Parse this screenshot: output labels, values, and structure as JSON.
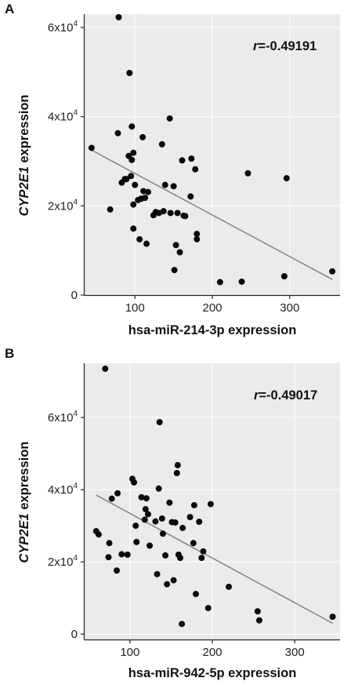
{
  "panels": [
    {
      "label": "A",
      "r_prefix": "r",
      "r_value": "=-0.49191",
      "y_label_italic": "CYP2E1",
      "y_label_rest": " expression",
      "x_label": "hsa-miR-214-3p expression",
      "x_ticks": [
        "100",
        "200",
        "300"
      ],
      "y_ticks": [
        {
          "base": "0",
          "exp": ""
        },
        {
          "base": "2x10",
          "exp": "4"
        },
        {
          "base": "4x10",
          "exp": "4"
        },
        {
          "base": "6x10",
          "exp": "4"
        }
      ]
    },
    {
      "label": "B",
      "r_prefix": "r",
      "r_value": "=-0.49017",
      "y_label_italic": "CYP2E1",
      "y_label_rest": " expression",
      "x_label": "hsa-miR-942-5p expression",
      "x_ticks": [
        "100",
        "200",
        "300"
      ],
      "y_ticks": [
        {
          "base": "0",
          "exp": ""
        },
        {
          "base": "2x10",
          "exp": "4"
        },
        {
          "base": "4x10",
          "exp": "4"
        },
        {
          "base": "6x10",
          "exp": "4"
        }
      ]
    }
  ],
  "chart_data": [
    {
      "type": "scatter",
      "title": "",
      "xlabel": "hsa-miR-214-3p expression",
      "ylabel": "CYP2E1 expression",
      "annotation": "r=-0.49191",
      "xlim": [
        35,
        365
      ],
      "ylim": [
        0,
        63000
      ],
      "x_ticks": [
        100,
        200,
        300
      ],
      "y_ticks": [
        0,
        20000,
        40000,
        60000
      ],
      "grid": true,
      "points": [
        [
          44,
          33000
        ],
        [
          68,
          19200
        ],
        [
          78,
          36300
        ],
        [
          79,
          62300
        ],
        [
          83,
          25200
        ],
        [
          87,
          26000
        ],
        [
          89,
          26000
        ],
        [
          92,
          31200
        ],
        [
          93,
          49800
        ],
        [
          95,
          26700
        ],
        [
          96,
          37800
        ],
        [
          96,
          30300
        ],
        [
          98,
          31900
        ],
        [
          98,
          20300
        ],
        [
          98,
          14900
        ],
        [
          100,
          24700
        ],
        [
          104,
          21300
        ],
        [
          106,
          12500
        ],
        [
          108,
          21600
        ],
        [
          110,
          35400
        ],
        [
          111,
          23300
        ],
        [
          113,
          21800
        ],
        [
          115,
          11500
        ],
        [
          117,
          23100
        ],
        [
          124,
          17900
        ],
        [
          127,
          18600
        ],
        [
          131,
          18400
        ],
        [
          135,
          33800
        ],
        [
          137,
          18800
        ],
        [
          139,
          24700
        ],
        [
          145,
          39600
        ],
        [
          146,
          18400
        ],
        [
          150,
          24400
        ],
        [
          151,
          5600
        ],
        [
          153,
          11200
        ],
        [
          155,
          18400
        ],
        [
          158,
          9600
        ],
        [
          161,
          30200
        ],
        [
          163,
          17800
        ],
        [
          165,
          17700
        ],
        [
          172,
          22100
        ],
        [
          173,
          30600
        ],
        [
          178,
          28200
        ],
        [
          180,
          13700
        ],
        [
          180,
          12500
        ],
        [
          210,
          2900
        ],
        [
          238,
          3000
        ],
        [
          246,
          27300
        ],
        [
          293,
          4200
        ],
        [
          296,
          26200
        ],
        [
          355,
          5300
        ]
      ],
      "fit_line": {
        "x": [
          44,
          355
        ],
        "y": [
          32500,
          3500
        ]
      }
    },
    {
      "type": "scatter",
      "title": "",
      "xlabel": "hsa-miR-942-5p expression",
      "ylabel": "CYP2E1 expression",
      "annotation": "r=-0.49017",
      "xlim": [
        45,
        355
      ],
      "ylim": [
        -1500,
        75000
      ],
      "x_ticks": [
        100,
        200,
        300
      ],
      "y_ticks": [
        0,
        20000,
        40000,
        60000
      ],
      "grid": true,
      "points": [
        [
          59,
          28500
        ],
        [
          62,
          27600
        ],
        [
          70,
          73500
        ],
        [
          74,
          21300
        ],
        [
          75,
          25200
        ],
        [
          78,
          37500
        ],
        [
          84,
          17600
        ],
        [
          85,
          39000
        ],
        [
          90,
          22100
        ],
        [
          97,
          22000
        ],
        [
          103,
          43000
        ],
        [
          105,
          42000
        ],
        [
          107,
          30000
        ],
        [
          108,
          25500
        ],
        [
          114,
          37900
        ],
        [
          118,
          31700
        ],
        [
          119,
          34600
        ],
        [
          120,
          37600
        ],
        [
          122,
          33200
        ],
        [
          124,
          24500
        ],
        [
          131,
          31200
        ],
        [
          133,
          16600
        ],
        [
          135,
          40300
        ],
        [
          136,
          58700
        ],
        [
          139,
          32000
        ],
        [
          140,
          27800
        ],
        [
          143,
          21800
        ],
        [
          145,
          13800
        ],
        [
          148,
          36400
        ],
        [
          151,
          31000
        ],
        [
          153,
          14900
        ],
        [
          155,
          30900
        ],
        [
          157,
          44600
        ],
        [
          158,
          46800
        ],
        [
          159,
          22000
        ],
        [
          161,
          21100
        ],
        [
          163,
          2800
        ],
        [
          164,
          29400
        ],
        [
          173,
          32400
        ],
        [
          177,
          25200
        ],
        [
          178,
          35700
        ],
        [
          180,
          11100
        ],
        [
          184,
          31100
        ],
        [
          187,
          21100
        ],
        [
          189,
          22900
        ],
        [
          195,
          7200
        ],
        [
          198,
          36000
        ],
        [
          220,
          13100
        ],
        [
          255,
          6300
        ],
        [
          257,
          3800
        ],
        [
          346,
          4800
        ]
      ],
      "fit_line": {
        "x": [
          59,
          346
        ],
        "y": [
          38500,
          3000
        ]
      }
    }
  ]
}
